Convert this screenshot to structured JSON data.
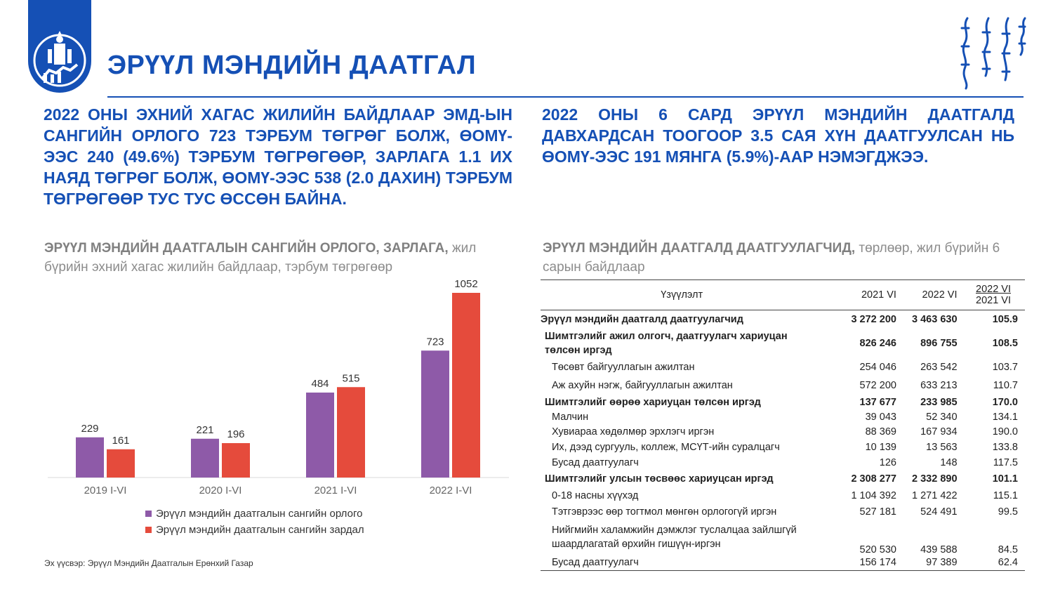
{
  "header": {
    "title": "ЭРҮҮЛ МЭНДИЙН ДААТГАЛ",
    "brand_color": "#1550b5"
  },
  "headlines": {
    "left": "2022 оны эхний хагас жилийн байдлаар ЭМД-ын сангийн орлого 723 тэрбум төгрөг болж, ӨОМҮ-ээс 240 (49.6%) тэрбум төгрөгөөр, зарлага 1.1 их наяд төгрөг болж, ӨОМҮ-ээс 538 (2.0 дахин) тэрбум төгрөгөөр тус тус өссөн байна.",
    "right": "2022 оны 6 сард эрүүл мэндийн даатгалд давхардсан тоогоор 3.5 сая хүн даатгуулсан нь ӨОМҮ-ээс 191 мянга (5.9%)-аар нэмэгджээ."
  },
  "chart_section": {
    "title_bold": "ЭРҮҮЛ МЭНДИЙН ДААТГАЛЫН САНГИЙН ОРЛОГО, ЗАРЛАГА,",
    "title_rest": "жил бүрийн эхний хагас жилийн байдлаар, тэрбум төгрөгөөр",
    "source": "Эх үүсвэр: Эрүүл Мэндийн Даатгалын Ерөнхий Газар"
  },
  "chart_data": {
    "type": "bar",
    "categories": [
      "2019 I-VI",
      "2020 I-VI",
      "2021 I-VI",
      "2022 I-VI"
    ],
    "series": [
      {
        "name": "Эрүүл мэндийн даатгалын сангийн орлого",
        "values": [
          229,
          221,
          484,
          723
        ],
        "color": "#8e5aa8"
      },
      {
        "name": "Эрүүл мэндийн даатгалын сангийн зардал",
        "values": [
          161,
          196,
          515,
          1052
        ],
        "color": "#e54b3c"
      }
    ],
    "ylim": [
      0,
      1100
    ],
    "grid": false,
    "legend_position": "bottom"
  },
  "table_section": {
    "title_bold": "ЭРҮҮЛ МЭНДИЙН ДААТГАЛД ДААТГУУЛАГЧИД,",
    "title_rest": "төрлөөр, жил бүрийн 6 сарын байдлаар",
    "columns": [
      "Үзүүлэлт",
      "2021 VI",
      "2022 VI"
    ],
    "ratio_header": [
      "2022 VI",
      "2021 VI"
    ],
    "rows": [
      {
        "label": "Эрүүл мэндийн даатгалд даатгуулагчид",
        "v2021": "3 272 200",
        "v2022": "3 463 630",
        "ratio": "105.9",
        "bold": true,
        "level": 0
      },
      {
        "label": "Шимтгэлийг ажил олгогч, даатгуулагч хариуцан төлсөн иргэд",
        "v2021": "826 246",
        "v2022": "896 755",
        "ratio": "108.5",
        "bold": true,
        "level": 1
      },
      {
        "label": "Төсөвт байгууллагын ажилтан",
        "v2021": "254 046",
        "v2022": "263 542",
        "ratio": "103.7",
        "bold": false,
        "level": 2
      },
      {
        "label": "Аж ахуйн нэгж, байгууллагын ажилтан",
        "v2021": "572 200",
        "v2022": "633 213",
        "ratio": "110.7",
        "bold": false,
        "level": 2
      },
      {
        "label": "Шимтгэлийг өөрөө хариуцан төлсөн иргэд",
        "v2021": "137 677",
        "v2022": "233 985",
        "ratio": "170.0",
        "bold": true,
        "level": 1
      },
      {
        "label": "Малчин",
        "v2021": "39 043",
        "v2022": "52 340",
        "ratio": "134.1",
        "bold": false,
        "level": 2
      },
      {
        "label": "Хувиараа хөдөлмөр эрхлэгч иргэн",
        "v2021": "88 369",
        "v2022": "167 934",
        "ratio": "190.0",
        "bold": false,
        "level": 2
      },
      {
        "label": "Их, дээд сургууль, коллеж, МСҮТ-ийн суралцагч",
        "v2021": "10 139",
        "v2022": "13 563",
        "ratio": "133.8",
        "bold": false,
        "level": 2
      },
      {
        "label": "Бусад даатгуулагч",
        "v2021": "126",
        "v2022": "148",
        "ratio": "117.5",
        "bold": false,
        "level": 2
      },
      {
        "label": "Шимтгэлийг улсын төсвөөс хариуцсан иргэд",
        "v2021": "2 308 277",
        "v2022": "2 332 890",
        "ratio": "101.1",
        "bold": true,
        "level": 1
      },
      {
        "label": "0-18 насны хүүхэд",
        "v2021": "1 104 392",
        "v2022": "1 271 422",
        "ratio": "115.1",
        "bold": false,
        "level": 2
      },
      {
        "label": "Тэтгэврээс өөр тогтмол мөнгөн орлогогүй иргэн",
        "v2021": "527 181",
        "v2022": "524 491",
        "ratio": "99.5",
        "bold": false,
        "level": 2
      },
      {
        "label": "Нийгмийн халамжийн дэмжлэг туслалцаа зайлшгүй шаардлагатай өрхийн гишүүн-иргэн",
        "v2021": "520 530",
        "v2022": "439 588",
        "ratio": "84.5",
        "bold": false,
        "level": 2
      },
      {
        "label": "Бусад даатгуулагч",
        "v2021": "156 174",
        "v2022": "97 389",
        "ratio": "62.4",
        "bold": false,
        "level": 2
      }
    ]
  }
}
